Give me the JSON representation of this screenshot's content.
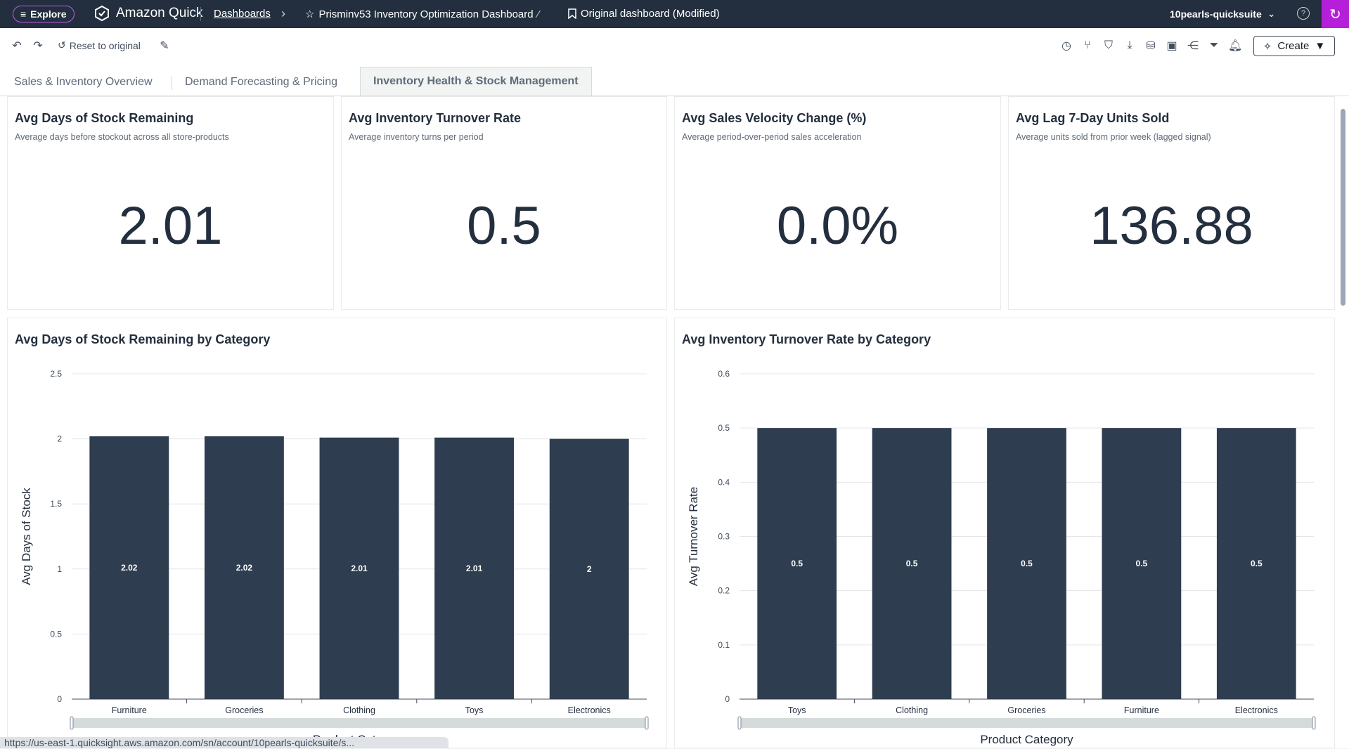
{
  "topbar": {
    "explore_label": "Explore",
    "app_name": "Amazon Quick",
    "breadcrumb_dashboards": "Dashboards",
    "dashboard_title": "Prisminv53 Inventory Optimization Dashboard",
    "sheet_name": "Original dashboard (Modified)",
    "account": "10pearls-quicksuite"
  },
  "toolbar": {
    "reset_label": "Reset to original",
    "create_label": "Create",
    "icons": [
      "undo-icon",
      "redo-icon",
      "reset-icon",
      "edit-visual-icon",
      "history-icon",
      "branch-icon",
      "bookmark-icon",
      "download-icon",
      "dataset-icon",
      "save-icon",
      "share-icon",
      "filter-icon",
      "alert-icon"
    ]
  },
  "tabs": [
    {
      "label": "Sales & Inventory Overview",
      "active": false
    },
    {
      "label": "Demand Forecasting & Pricing",
      "active": false
    },
    {
      "label": "Inventory Health & Stock Management",
      "active": true
    }
  ],
  "kpis": [
    {
      "title": "Avg Days of Stock Remaining",
      "subtitle": "Average days before stockout across all store-products",
      "value": "2.01"
    },
    {
      "title": "Avg Inventory Turnover Rate",
      "subtitle": "Average inventory turns per period",
      "value": "0.5"
    },
    {
      "title": "Avg Sales Velocity Change (%)",
      "subtitle": "Average period-over-period sales acceleration",
      "value": "0.0%"
    },
    {
      "title": "Avg Lag 7-Day Units Sold",
      "subtitle": "Average units sold from prior week (lagged signal)",
      "value": "136.88"
    }
  ],
  "chart_titles": {
    "left": "Avg Days of Stock Remaining by Category",
    "right": "Avg Inventory Turnover Rate by Category"
  },
  "chart_data": [
    {
      "type": "bar",
      "title": "Avg Days of Stock Remaining by Category",
      "categories": [
        "Furniture",
        "Groceries",
        "Clothing",
        "Toys",
        "Electronics"
      ],
      "values": [
        2.02,
        2.02,
        2.01,
        2.01,
        2
      ],
      "data_labels": [
        "2.02",
        "2.02",
        "2.01",
        "2.01",
        "2"
      ],
      "xlabel": "Product Category",
      "ylabel": "Avg Days of Stock",
      "ylim": [
        0,
        2.5
      ],
      "yticks": [
        "0",
        "0.5",
        "1",
        "1.5",
        "2",
        "2.5"
      ],
      "ytick_values": [
        0,
        0.5,
        1,
        1.5,
        2,
        2.5
      ],
      "grid": true,
      "bar_color": "#2e3d4f"
    },
    {
      "type": "bar",
      "title": "Avg Inventory Turnover Rate by Category",
      "categories": [
        "Toys",
        "Clothing",
        "Groceries",
        "Furniture",
        "Electronics"
      ],
      "values": [
        0.5,
        0.5,
        0.5,
        0.5,
        0.5
      ],
      "data_labels": [
        "0.5",
        "0.5",
        "0.5",
        "0.5",
        "0.5"
      ],
      "xlabel": "Product Category",
      "ylabel": "Avg Turnover Rate",
      "ylim": [
        0,
        0.6
      ],
      "yticks": [
        "0",
        "0.1",
        "0.2",
        "0.3",
        "0.4",
        "0.5",
        "0.6"
      ],
      "ytick_values": [
        0,
        0.1,
        0.2,
        0.3,
        0.4,
        0.5,
        0.6
      ],
      "grid": true,
      "bar_color": "#2e3d4f"
    }
  ],
  "status_url": "https://us-east-1.quicksight.aws.amazon.com/sn/account/10pearls-quicksuite/s..."
}
